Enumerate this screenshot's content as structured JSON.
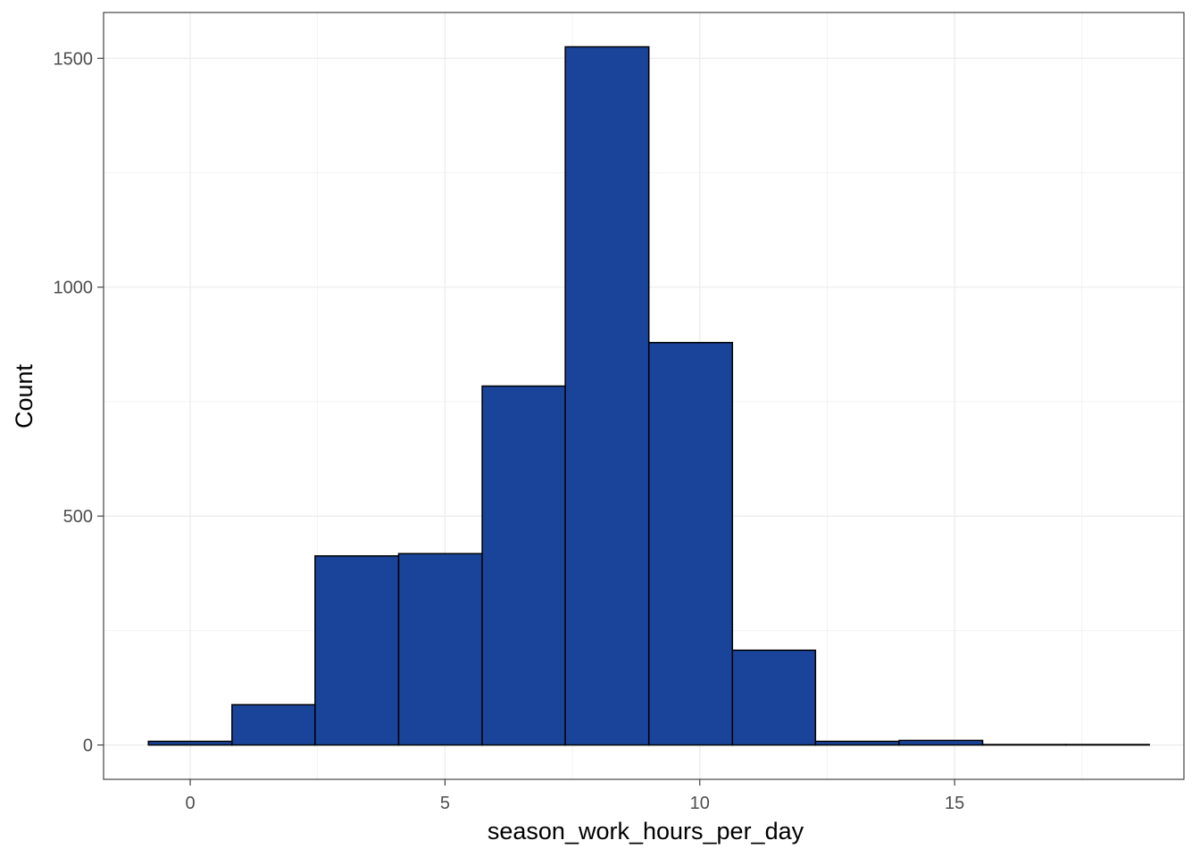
{
  "chart_data": {
    "type": "bar",
    "subtype": "histogram",
    "xlabel": "season_work_hours_per_day",
    "ylabel": "Count",
    "xlim": [
      -1.7,
      19.5
    ],
    "ylim": [
      -75,
      1600
    ],
    "x_ticks": [
      0,
      5,
      10,
      15
    ],
    "y_ticks": [
      0,
      500,
      1000,
      1500
    ],
    "grid": true,
    "bar_fill": "#1a449a",
    "bar_stroke": "#000000",
    "bins": [
      {
        "x0": -0.82,
        "x1": 0.82,
        "count": 8
      },
      {
        "x0": 0.82,
        "x1": 2.45,
        "count": 88
      },
      {
        "x0": 2.45,
        "x1": 4.09,
        "count": 413
      },
      {
        "x0": 4.09,
        "x1": 5.73,
        "count": 418
      },
      {
        "x0": 5.73,
        "x1": 7.36,
        "count": 784
      },
      {
        "x0": 7.36,
        "x1": 9.0,
        "count": 1525
      },
      {
        "x0": 9.0,
        "x1": 10.64,
        "count": 879
      },
      {
        "x0": 10.64,
        "x1": 12.27,
        "count": 207
      },
      {
        "x0": 12.27,
        "x1": 13.91,
        "count": 8
      },
      {
        "x0": 13.91,
        "x1": 15.55,
        "count": 10
      },
      {
        "x0": 15.55,
        "x1": 17.18,
        "count": 1
      },
      {
        "x0": 17.18,
        "x1": 18.82,
        "count": 1
      }
    ]
  }
}
